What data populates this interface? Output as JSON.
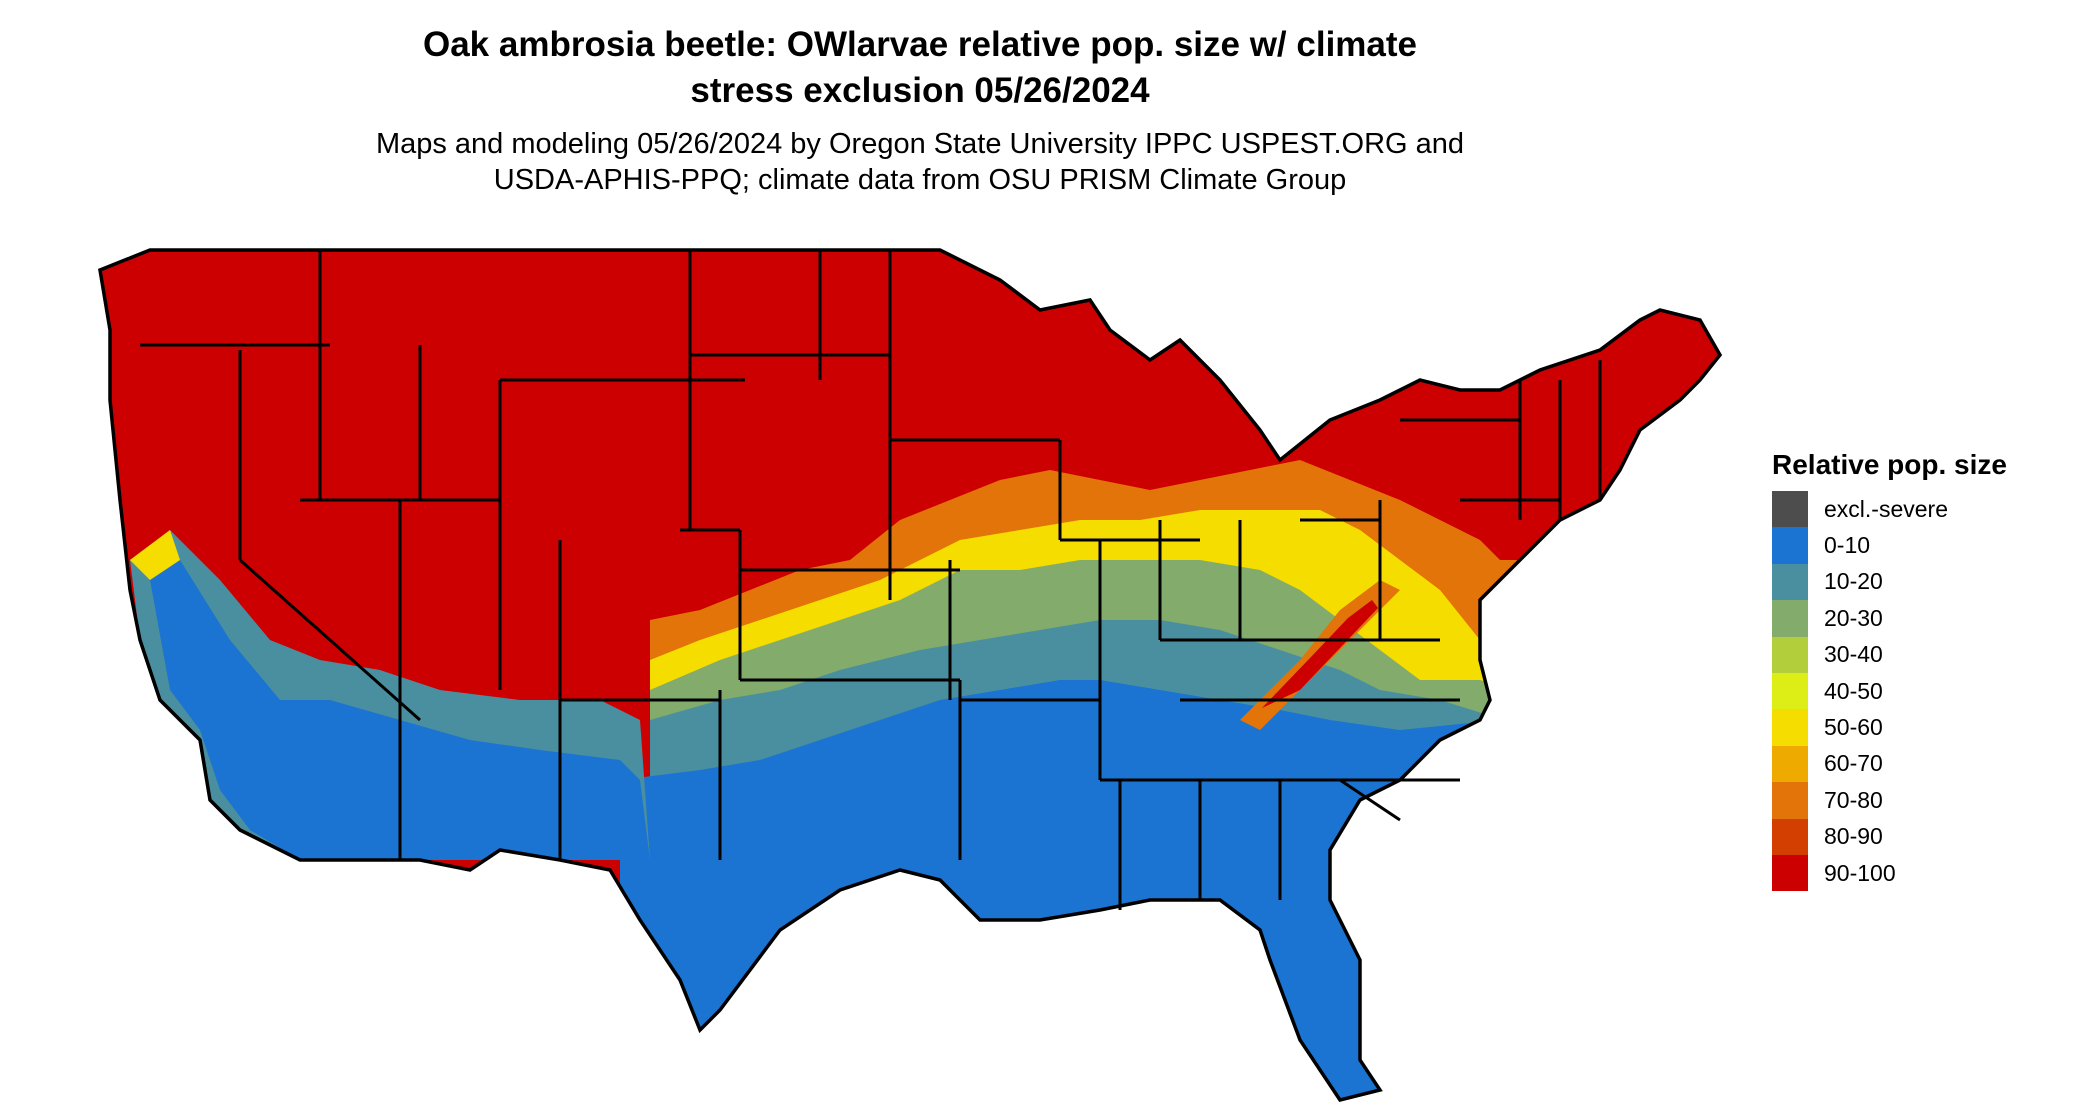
{
  "title": {
    "line1": "Oak ambrosia beetle: OWlarvae relative pop. size w/ climate",
    "line2": "stress exclusion 05/26/2024"
  },
  "subtitle": {
    "line1": "Maps and modeling 05/26/2024 by Oregon State University IPPC USPEST.ORG and",
    "line2": "USDA-APHIS-PPQ; climate data from OSU PRISM Climate Group"
  },
  "legend": {
    "title": "Relative pop. size",
    "items": [
      {
        "label": "excl.-severe",
        "color": "#4d4d4d"
      },
      {
        "label": "0-10",
        "color": "#1b74d1"
      },
      {
        "label": "10-20",
        "color": "#4a8fa0"
      },
      {
        "label": "20-30",
        "color": "#82ab6c"
      },
      {
        "label": "30-40",
        "color": "#b2cf3b"
      },
      {
        "label": "40-50",
        "color": "#dcee15"
      },
      {
        "label": "50-60",
        "color": "#f6dd00"
      },
      {
        "label": "60-70",
        "color": "#efaa00"
      },
      {
        "label": "70-80",
        "color": "#e2740a"
      },
      {
        "label": "80-90",
        "color": "#d33f00"
      },
      {
        "label": "90-100",
        "color": "#cc0000"
      }
    ]
  },
  "map": {
    "region": "Contiguous United States",
    "band_colors": {
      "high": "#cc0000",
      "orange": "#e2740a",
      "yellow": "#f6dd00",
      "green": "#82ab6c",
      "teal": "#4a8fa0",
      "blue": "#1b74d1",
      "border": "#000000"
    }
  }
}
